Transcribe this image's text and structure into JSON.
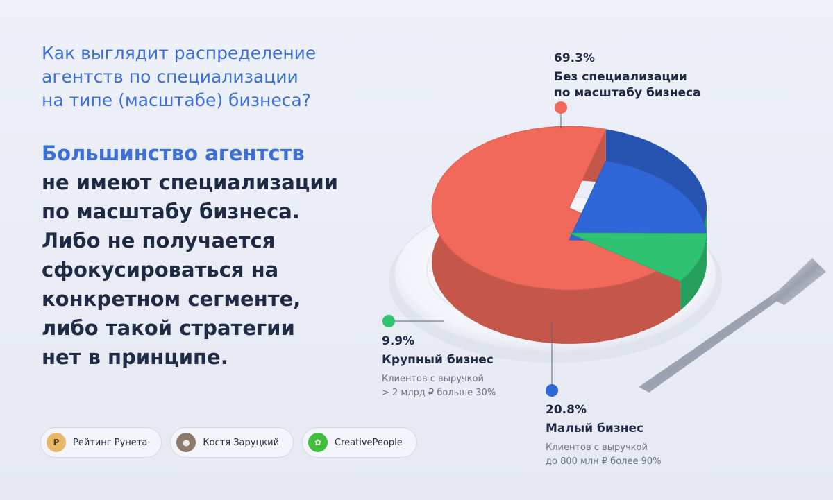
{
  "question": {
    "line1": "Как выглядит распределение",
    "line2": "агентств по специализации",
    "line3": "на типе (масштабе) бизнеса?"
  },
  "answer": {
    "line1": "Большинство агентств",
    "line2": "не имеют специализации",
    "line3": "по масштабу бизнеса.",
    "line4": "Либо не получается",
    "line5": "сфокусироваться на",
    "line6": "конкретном сегменте,",
    "line7": "либо такой стратегии",
    "line8": "нет в принципе."
  },
  "chart_data": {
    "type": "pie",
    "slices": [
      {
        "label": "Без специализации по масштабу бизнеса",
        "value": 69.3,
        "value_text": "69.3%",
        "color": "#f0695a",
        "caption_line1": "Без специализации",
        "caption_line2": "по масштабу бизнеса"
      },
      {
        "label": "Малый бизнес",
        "value": 20.8,
        "value_text": "20.8%",
        "color": "#2f67d8",
        "caption_line1": "Малый бизнес",
        "note_line1": "Клиентов с выручкой",
        "note_line2": "до 800 млн ₽ более 90%"
      },
      {
        "label": "Крупный бизнес",
        "value": 9.9,
        "value_text": "9.9%",
        "color": "#2ec271",
        "caption_line1": "Крупный бизнес",
        "note_line1": "Клиентов с выручкой",
        "note_line2": "> 2 млрд ₽ больше 30%"
      }
    ]
  },
  "credits": [
    {
      "name": "Рейтинг Рунета",
      "icon": "ruward-logo-icon",
      "color": "#d9a24a"
    },
    {
      "name": "Костя Заруцкий",
      "icon": "person-avatar-icon",
      "color": "#7a6a5c"
    },
    {
      "name": "CreativePeople",
      "icon": "creativepeople-logo-icon",
      "color": "#3fbf3a"
    }
  ]
}
